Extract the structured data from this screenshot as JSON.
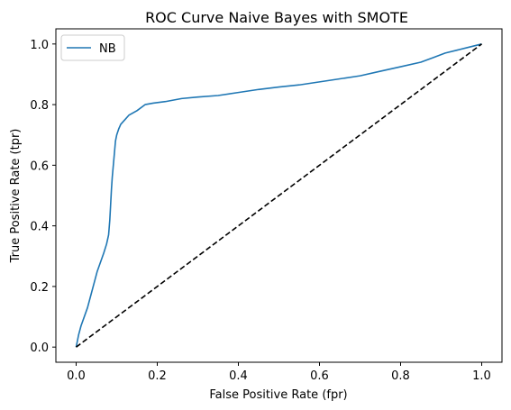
{
  "chart_data": {
    "type": "line",
    "title": "ROC Curve Naive Bayes with SMOTE",
    "xlabel": "False Positive Rate (fpr)",
    "ylabel": "True Positive Rate (tpr)",
    "xlim": [
      -0.05,
      1.05
    ],
    "ylim": [
      -0.05,
      1.05
    ],
    "xticks": [
      0.0,
      0.2,
      0.4,
      0.6,
      0.8,
      1.0
    ],
    "yticks": [
      0.0,
      0.2,
      0.4,
      0.6,
      0.8,
      1.0
    ],
    "xtick_labels": [
      "0.0",
      "0.2",
      "0.4",
      "0.6",
      "0.8",
      "1.0"
    ],
    "ytick_labels": [
      "0.0",
      "0.2",
      "0.4",
      "0.6",
      "0.8",
      "1.0"
    ],
    "grid": false,
    "legend": "upper-left",
    "series": [
      {
        "name": "NB",
        "color": "#1f77b4",
        "style": "solid",
        "x": [
          0.0,
          0.006,
          0.012,
          0.02,
          0.028,
          0.036,
          0.044,
          0.052,
          0.06,
          0.068,
          0.075,
          0.08,
          0.083,
          0.085,
          0.087,
          0.089,
          0.091,
          0.093,
          0.095,
          0.097,
          0.1,
          0.105,
          0.11,
          0.12,
          0.13,
          0.15,
          0.17,
          0.19,
          0.22,
          0.26,
          0.3,
          0.35,
          0.4,
          0.45,
          0.5,
          0.55,
          0.6,
          0.65,
          0.7,
          0.75,
          0.8,
          0.85,
          0.88,
          0.91,
          0.94,
          0.97,
          1.0
        ],
        "y": [
          0.0,
          0.04,
          0.07,
          0.1,
          0.13,
          0.17,
          0.21,
          0.25,
          0.28,
          0.31,
          0.34,
          0.37,
          0.42,
          0.47,
          0.52,
          0.56,
          0.59,
          0.62,
          0.65,
          0.68,
          0.7,
          0.72,
          0.735,
          0.75,
          0.765,
          0.78,
          0.8,
          0.805,
          0.81,
          0.82,
          0.825,
          0.83,
          0.84,
          0.85,
          0.858,
          0.865,
          0.875,
          0.885,
          0.895,
          0.91,
          0.925,
          0.94,
          0.955,
          0.97,
          0.98,
          0.99,
          1.0
        ]
      },
      {
        "name": "",
        "color": "#000000",
        "style": "dashed",
        "x": [
          0.0,
          1.0
        ],
        "y": [
          0.0,
          1.0
        ]
      }
    ]
  }
}
